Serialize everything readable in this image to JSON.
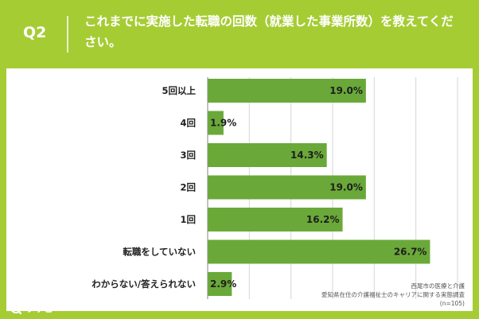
{
  "header": {
    "question_number": "Q2",
    "title": "これまでに実施した転職の回数（就業した事業所数）を教えてください。"
  },
  "source": {
    "line1": "西尾市の医療と介護",
    "line2": "愛知県在住の介護福祉士のキャリアに関する実態調査",
    "line3": "(n=105)"
  },
  "brand": {
    "logo_text": "リサピー"
  },
  "colors": {
    "background": "#a6cc34",
    "bar": "#6aa939",
    "grid": "#d6d6d6"
  },
  "chart_data": {
    "type": "bar",
    "orientation": "horizontal",
    "categories": [
      "5回以上",
      "4回",
      "3回",
      "2回",
      "1回",
      "転職をしていない",
      "わからない/答えられない"
    ],
    "values": [
      19.0,
      1.9,
      14.3,
      19.0,
      16.2,
      26.7,
      2.9
    ],
    "value_labels": [
      "19.0%",
      "1.9%",
      "14.3%",
      "19.0%",
      "16.2%",
      "26.7%",
      "2.9%"
    ],
    "xlim": [
      0,
      30
    ],
    "grid": true,
    "unit": "%"
  }
}
